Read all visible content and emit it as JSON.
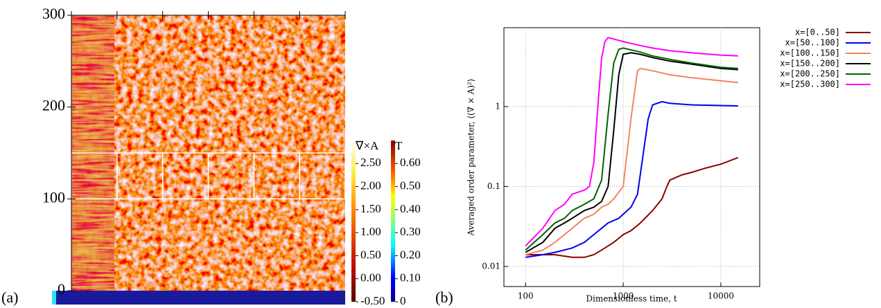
{
  "chart_data": [
    {
      "type": "heatmap",
      "label": "(a)",
      "xlim": [
        0,
        300
      ],
      "xticks": [
        0,
        50,
        100,
        150,
        200,
        250,
        300
      ],
      "ylim": [
        0,
        300
      ],
      "yticks": [
        0,
        100,
        200,
        300
      ],
      "highlight_ylim": [
        100,
        150
      ],
      "colorbars": [
        {
          "title": "∇×A",
          "clim": [
            -0.5,
            3.0
          ],
          "ticks": [
            {
              "value": -0.5,
              "label": "-0.50"
            },
            {
              "value": 0,
              "label": "0.00"
            },
            {
              "value": 0.5,
              "label": "0.50"
            },
            {
              "value": 1,
              "label": "1.00"
            },
            {
              "value": 1.5,
              "label": "1.50"
            },
            {
              "value": 2,
              "label": "2.00"
            },
            {
              "value": 2.5,
              "label": "2.50"
            }
          ]
        },
        {
          "title": "T",
          "clim": [
            0,
            0.7
          ],
          "ticks": [
            0,
            {
              "value": 0.1,
              "label": "0.10"
            },
            {
              "value": 0.2,
              "label": "0.20"
            },
            {
              "value": 0.3,
              "label": "0.30"
            },
            {
              "value": 0.4,
              "label": "0.40"
            },
            {
              "value": 0.5,
              "label": "0.50"
            },
            {
              "value": 0.6,
              "label": "0.60"
            }
          ]
        }
      ]
    },
    {
      "type": "line",
      "label": "(b)",
      "x_label": "Dimensionless time, t",
      "y_label": "Averaged order parameter, ⟨(∇ × A)²⟩",
      "xscale": "log",
      "yscale": "log",
      "grid": true,
      "legend": "outside-right",
      "xlim": [
        60,
        25000
      ],
      "xticks": [
        100,
        1000,
        10000
      ],
      "ylim": [
        0.0056,
        9.7
      ],
      "yticks": [
        0.01,
        0.1,
        1
      ],
      "series": [
        {
          "name": "x=[0..50]",
          "color": "#8b0000",
          "x": [
            100,
            200,
            300,
            400,
            500,
            600,
            800,
            1000,
            1200,
            1500,
            2000,
            2500,
            2800,
            3000,
            4000,
            5000,
            7000,
            10000,
            15000
          ],
          "values": [
            0.014,
            0.014,
            0.013,
            0.013,
            0.014,
            0.016,
            0.02,
            0.025,
            0.028,
            0.035,
            0.05,
            0.07,
            0.1,
            0.12,
            0.14,
            0.15,
            0.17,
            0.19,
            0.23
          ]
        },
        {
          "name": "x=[50..100]",
          "color": "#0000ee",
          "x": [
            100,
            150,
            200,
            300,
            400,
            500,
            600,
            700,
            900,
            1000,
            1200,
            1400,
            1600,
            1800,
            2000,
            2500,
            3000,
            5000,
            10000,
            15000
          ],
          "values": [
            0.013,
            0.014,
            0.015,
            0.017,
            0.02,
            0.025,
            0.03,
            0.035,
            0.04,
            0.045,
            0.055,
            0.08,
            0.25,
            0.7,
            1.05,
            1.15,
            1.1,
            1.05,
            1.03,
            1.02
          ]
        },
        {
          "name": "x=[100..150]",
          "color": "#f4845f",
          "x": [
            100,
            150,
            200,
            250,
            300,
            400,
            500,
            600,
            700,
            800,
            1000,
            1200,
            1400,
            1500,
            2000,
            3000,
            5000,
            10000,
            15000
          ],
          "values": [
            0.014,
            0.016,
            0.02,
            0.025,
            0.03,
            0.04,
            0.045,
            0.055,
            0.06,
            0.07,
            0.1,
            0.7,
            2.8,
            3.0,
            2.8,
            2.5,
            2.3,
            2.1,
            2.0
          ]
        },
        {
          "name": "x=[150..200]",
          "color": "#000000",
          "x": [
            100,
            150,
            200,
            250,
            300,
            400,
            500,
            600,
            700,
            800,
            900,
            1000,
            1200,
            1500,
            2000,
            3000,
            5000,
            10000,
            15000
          ],
          "values": [
            0.015,
            0.02,
            0.03,
            0.035,
            0.04,
            0.05,
            0.055,
            0.065,
            0.1,
            0.5,
            2.5,
            4.5,
            4.7,
            4.5,
            4.1,
            3.7,
            3.4,
            3.0,
            2.9
          ]
        },
        {
          "name": "x=[200..250]",
          "color": "#006400",
          "x": [
            100,
            150,
            200,
            250,
            300,
            400,
            500,
            600,
            700,
            800,
            900,
            1000,
            1500,
            2000,
            3000,
            5000,
            10000,
            15000
          ],
          "values": [
            0.016,
            0.025,
            0.035,
            0.04,
            0.05,
            0.06,
            0.07,
            0.12,
            0.8,
            3.5,
            5.2,
            5.4,
            4.8,
            4.3,
            3.9,
            3.5,
            3.1,
            3.0
          ]
        },
        {
          "name": "x=[250..300]",
          "color": "#ff00ff",
          "x": [
            100,
            150,
            200,
            250,
            300,
            400,
            450,
            500,
            550,
            600,
            650,
            700,
            800,
            1000,
            1500,
            2000,
            3000,
            5000,
            10000,
            15000
          ],
          "values": [
            0.018,
            0.03,
            0.05,
            0.06,
            0.08,
            0.09,
            0.1,
            0.2,
            1.0,
            4.0,
            6.5,
            7.3,
            7.0,
            6.5,
            5.8,
            5.4,
            5.0,
            4.7,
            4.4,
            4.3
          ]
        }
      ]
    }
  ]
}
